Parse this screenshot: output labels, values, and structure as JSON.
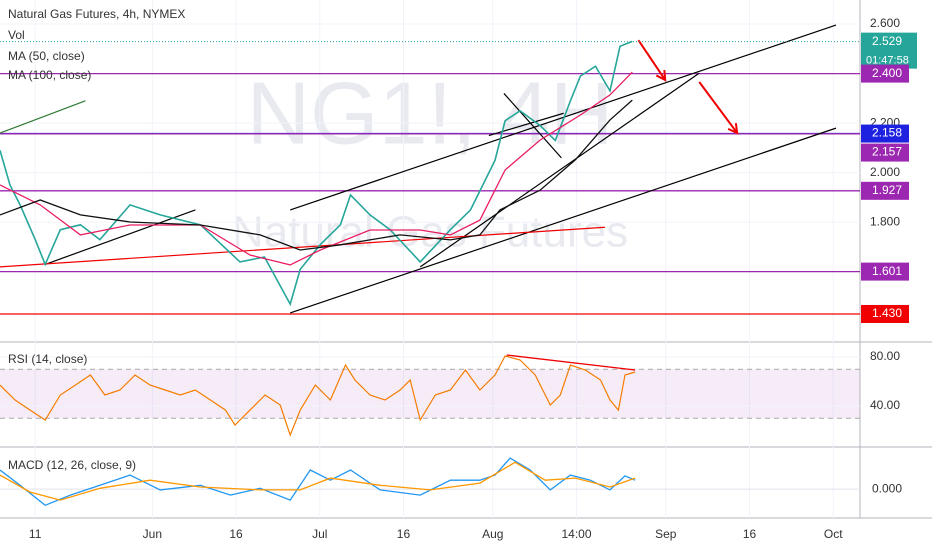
{
  "chart_data": {
    "type": "financial",
    "title": "Natural Gas Futures, 4h, NYMEX",
    "indicator_labels": [
      "Vol",
      "MA (50, close)",
      "MA (100, close)"
    ],
    "watermark": [
      "NG1!, 4H",
      "Natural Gas Futures"
    ],
    "xlim": [
      0.7,
      154.8
    ],
    "xticks": [
      {
        "value": 7,
        "label": "11"
      },
      {
        "value": 28,
        "label": "Jun"
      },
      {
        "value": 43,
        "label": "16"
      },
      {
        "value": 58,
        "label": "Jul"
      },
      {
        "value": 73,
        "label": "16"
      },
      {
        "value": 89,
        "label": "Aug"
      },
      {
        "value": 104,
        "label": "14:00"
      },
      {
        "value": 120,
        "label": "Sep"
      },
      {
        "value": 135,
        "label": "16"
      },
      {
        "value": 150,
        "label": "Oct"
      }
    ],
    "ylim": [
      1.325,
      2.697
    ],
    "yticks": [
      {
        "value": 2.6,
        "label": "2.600"
      },
      {
        "value": 2.2,
        "label": "2.200"
      },
      {
        "value": 2.0,
        "label": "2.000"
      },
      {
        "value": 1.8,
        "label": "1.800"
      }
    ],
    "series": [
      {
        "name": "Price",
        "color": "#26a69a",
        "x": [
          0.7,
          2.5,
          4.3,
          7,
          8.8,
          11.5,
          15.1,
          18.6,
          24.0,
          29.4,
          36.6,
          43.7,
          48.1,
          52.7,
          54.5,
          58.1,
          61.7,
          63.5,
          67.0,
          70.6,
          76.0,
          81.4,
          85.0,
          89.4,
          91.2,
          93.9,
          97.5,
          100.2,
          102.9,
          104.7,
          107.4,
          110.0,
          111.8,
          114.0
        ],
        "values": [
          2.09,
          1.95,
          1.87,
          1.73,
          1.63,
          1.77,
          1.79,
          1.73,
          1.87,
          1.83,
          1.79,
          1.64,
          1.66,
          1.47,
          1.61,
          1.71,
          1.79,
          1.91,
          1.83,
          1.77,
          1.64,
          1.77,
          1.85,
          2.05,
          2.21,
          2.25,
          2.19,
          2.13,
          2.29,
          2.39,
          2.43,
          2.33,
          2.51,
          2.53
        ]
      },
      {
        "name": "MA (50, close)",
        "color": "#e91e63",
        "x": [
          0.7,
          7.9,
          15.1,
          24.0,
          36.6,
          45.5,
          52.7,
          58.1,
          67.0,
          76.0,
          81.4,
          86.7,
          91.2,
          97.5,
          104.7,
          110.0,
          114.0
        ],
        "values": [
          1.951,
          1.87,
          1.749,
          1.789,
          1.789,
          1.668,
          1.628,
          1.688,
          1.769,
          1.769,
          1.749,
          1.809,
          2.011,
          2.132,
          2.233,
          2.314,
          2.406
        ]
      },
      {
        "name": "MA (100, close)",
        "color": "#111111",
        "x": [
          0.7,
          7.9,
          15.1,
          24.0,
          36.6,
          47.3,
          54.5,
          61.7,
          72.4,
          81.4,
          86.7,
          90.3,
          97.5,
          103.8,
          110.0,
          114.0
        ],
        "values": [
          1.83,
          1.89,
          1.83,
          1.801,
          1.789,
          1.749,
          1.688,
          1.709,
          1.749,
          1.729,
          1.749,
          1.85,
          1.93,
          2.052,
          2.213,
          2.293
        ]
      }
    ],
    "levels": [
      {
        "value": 2.4,
        "label": "2.400",
        "color": "#9c27b0"
      },
      {
        "value": 2.158,
        "label": "2.158",
        "color": "#1e22e0"
      },
      {
        "value": 2.157,
        "label": "2.157",
        "color": "#9c27b0"
      },
      {
        "value": 1.927,
        "label": "1.927",
        "color": "#9c27b0"
      },
      {
        "value": 1.601,
        "label": "1.601",
        "color": "#9c27b0"
      },
      {
        "value": 1.43,
        "label": "1.430",
        "color": "#f00000"
      }
    ],
    "last_price": {
      "value": 2.529,
      "label": "2.529",
      "countdown": "01:47:58",
      "color": "#26a69a"
    },
    "lines": [
      {
        "color": "#000000",
        "points": [
          [
            52.7,
            1.85
          ],
          [
            150.5,
            2.596
          ]
        ]
      },
      {
        "color": "#000000",
        "points": [
          [
            52.7,
            1.434
          ],
          [
            150.5,
            2.18
          ]
        ]
      },
      {
        "color": "#000000",
        "points": [
          [
            76.0,
            1.62
          ],
          [
            126.0,
            2.402
          ]
        ]
      },
      {
        "color": "#000000",
        "points": [
          [
            8.8,
            1.63
          ],
          [
            35.7,
            1.85
          ]
        ]
      },
      {
        "color": "#2e7d32",
        "points": [
          [
            0.7,
            2.16
          ],
          [
            16.0,
            2.29
          ]
        ]
      },
      {
        "color": "#f00000",
        "points": [
          [
            0.7,
            1.62
          ],
          [
            109.1,
            1.78
          ]
        ]
      },
      {
        "color": "#000000",
        "points": [
          [
            91.0,
            2.32
          ],
          [
            101.3,
            2.06
          ]
        ]
      },
      {
        "color": "#000000",
        "points": [
          [
            88.3,
            2.15
          ],
          [
            101.7,
            2.24
          ]
        ]
      }
    ],
    "arrows": [
      {
        "color": "#f00000",
        "points": [
          [
            115.1,
            2.535
          ],
          [
            119.9,
            2.374
          ]
        ]
      },
      {
        "color": "#f00000",
        "points": [
          [
            126.0,
            2.366
          ],
          [
            132.8,
            2.16
          ]
        ]
      }
    ],
    "rsi": {
      "title": "RSI (14, close)",
      "color": "#f57c00",
      "ylim": [
        8.2,
        89.8
      ],
      "yticks": [
        {
          "value": 80,
          "label": "80.00"
        },
        {
          "value": 40,
          "label": "40.00"
        }
      ],
      "band": [
        30,
        70
      ],
      "x": [
        0.7,
        3.4,
        6.1,
        8.8,
        11.5,
        14.2,
        16.9,
        19.5,
        22.2,
        24.9,
        27.6,
        30.3,
        33.0,
        35.7,
        38.4,
        41.1,
        42.8,
        45.5,
        48.2,
        50.9,
        52.7,
        54.5,
        57.2,
        59.9,
        62.6,
        64.3,
        67.0,
        69.7,
        72.4,
        74.2,
        76.0,
        78.7,
        81.4,
        84.1,
        86.7,
        89.4,
        91.2,
        93.9,
        96.6,
        99.3,
        101.1,
        102.9,
        105.6,
        108.3,
        110.0,
        111.5,
        112.7,
        114.5
      ],
      "values": [
        57.1,
        44.9,
        36.7,
        28.6,
        49.0,
        57.1,
        65.3,
        49.0,
        53.1,
        65.3,
        57.1,
        53.1,
        49.0,
        53.1,
        44.9,
        36.7,
        24.5,
        36.7,
        49.0,
        40.8,
        16.3,
        36.7,
        57.1,
        44.9,
        73.5,
        61.2,
        49.0,
        44.9,
        53.1,
        61.2,
        28.6,
        49.0,
        53.1,
        69.4,
        53.1,
        65.3,
        80.8,
        77.6,
        65.3,
        40.8,
        49.0,
        73.5,
        69.4,
        61.2,
        44.9,
        36.7,
        65.3,
        67.8
      ],
      "trend": {
        "color": "#f00000",
        "points": [
          [
            91.5,
            81.6
          ],
          [
            114.5,
            69.4
          ]
        ]
      }
    },
    "macd": {
      "title": "MACD (12, 26, close, 9)",
      "ylim": [
        -0.068,
        0.092
      ],
      "yticks": [
        {
          "value": 0,
          "label": "0.000"
        }
      ],
      "series": [
        {
          "name": "MACD",
          "color": "#2196f3",
          "x": [
            0.7,
            4.3,
            8.8,
            13.3,
            18.6,
            24.0,
            29.4,
            36.6,
            42.0,
            47.3,
            52.7,
            56.3,
            59.9,
            63.5,
            68.8,
            76.0,
            81.4,
            86.7,
            89.4,
            92.1,
            95.7,
            99.3,
            102.9,
            106.5,
            110.0,
            112.7,
            114.5
          ],
          "values": [
            0.045,
            0.009,
            -0.038,
            -0.014,
            0.009,
            0.033,
            -0.002,
            0.009,
            -0.014,
            0.002,
            -0.026,
            0.045,
            0.021,
            0.045,
            -0.002,
            -0.014,
            0.021,
            0.021,
            0.033,
            0.073,
            0.045,
            -0.002,
            0.033,
            0.021,
            -0.002,
            0.031,
            0.021
          ]
        },
        {
          "name": "Signal",
          "color": "#ff9800",
          "x": [
            0.7,
            6.1,
            11.5,
            18.6,
            27.6,
            36.6,
            47.3,
            54.5,
            59.9,
            68.8,
            77.8,
            86.7,
            93.0,
            98.4,
            103.8,
            110.0,
            114.5
          ],
          "values": [
            0.033,
            -0.007,
            -0.026,
            0.002,
            0.021,
            0.005,
            -0.002,
            -0.002,
            0.026,
            0.009,
            -0.002,
            0.014,
            0.063,
            0.021,
            0.026,
            0.005,
            0.026
          ]
        }
      ]
    }
  }
}
